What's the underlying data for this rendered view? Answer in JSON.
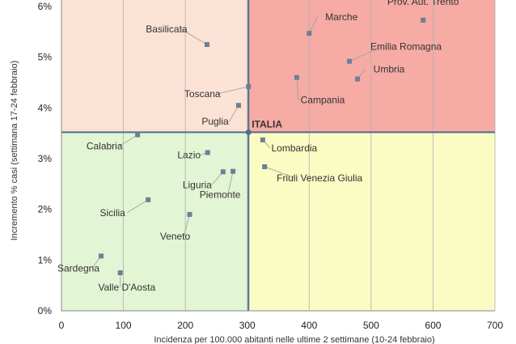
{
  "chart_data": {
    "type": "scatter",
    "xlabel": "Incidenza per 100.000 abitanti nelle ultime 2 settimane (10-24 febbraio)",
    "ylabel": "Incremento % casi (settimana 17-24 febbraio)",
    "xlim": [
      0,
      700
    ],
    "ylim": [
      0,
      6
    ],
    "x_ticks": [
      "0",
      "100",
      "200",
      "300",
      "400",
      "500",
      "600",
      "700"
    ],
    "y_ticks": [
      "0%",
      "1%",
      "2%",
      "3%",
      "4%",
      "5%",
      "6%"
    ],
    "reference": {
      "label": "ITALIA",
      "x": 302,
      "y": 3.52
    },
    "quadrant_colors": {
      "top_left": "#fbe2d4",
      "top_right": "#f6aba5",
      "bottom_left": "#e2f5d4",
      "bottom_right": "#fbfbc4"
    },
    "point_color": "#6d7f95",
    "reference_line_color": "#4f6e8c",
    "points": [
      {
        "label": "Prov. Aut. Trento",
        "x": 584,
        "y": 5.73
      },
      {
        "label": "Marche",
        "x": 400,
        "y": 5.47
      },
      {
        "label": "Basilicata",
        "x": 235,
        "y": 5.25
      },
      {
        "label": "Emilia Romagna",
        "x": 465,
        "y": 4.92
      },
      {
        "label": "Campania",
        "x": 380,
        "y": 4.6
      },
      {
        "label": "Umbria",
        "x": 478,
        "y": 4.57
      },
      {
        "label": "Toscana",
        "x": 302,
        "y": 4.42
      },
      {
        "label": "Puglia",
        "x": 286,
        "y": 4.05
      },
      {
        "label": "Calabria",
        "x": 123,
        "y": 3.47
      },
      {
        "label": "Lombardia",
        "x": 325,
        "y": 3.37
      },
      {
        "label": "Lazio",
        "x": 236,
        "y": 3.12
      },
      {
        "label": "Friuli Venezia Giulia",
        "x": 328,
        "y": 2.84
      },
      {
        "label": "Liguria",
        "x": 261,
        "y": 2.74
      },
      {
        "label": "Piemonte",
        "x": 277,
        "y": 2.75
      },
      {
        "label": "Sicilia",
        "x": 140,
        "y": 2.19
      },
      {
        "label": "Veneto",
        "x": 207,
        "y": 1.9
      },
      {
        "label": "Sardegna",
        "x": 64,
        "y": 1.08
      },
      {
        "label": "Valle D'Aosta",
        "x": 95,
        "y": 0.75
      }
    ]
  }
}
